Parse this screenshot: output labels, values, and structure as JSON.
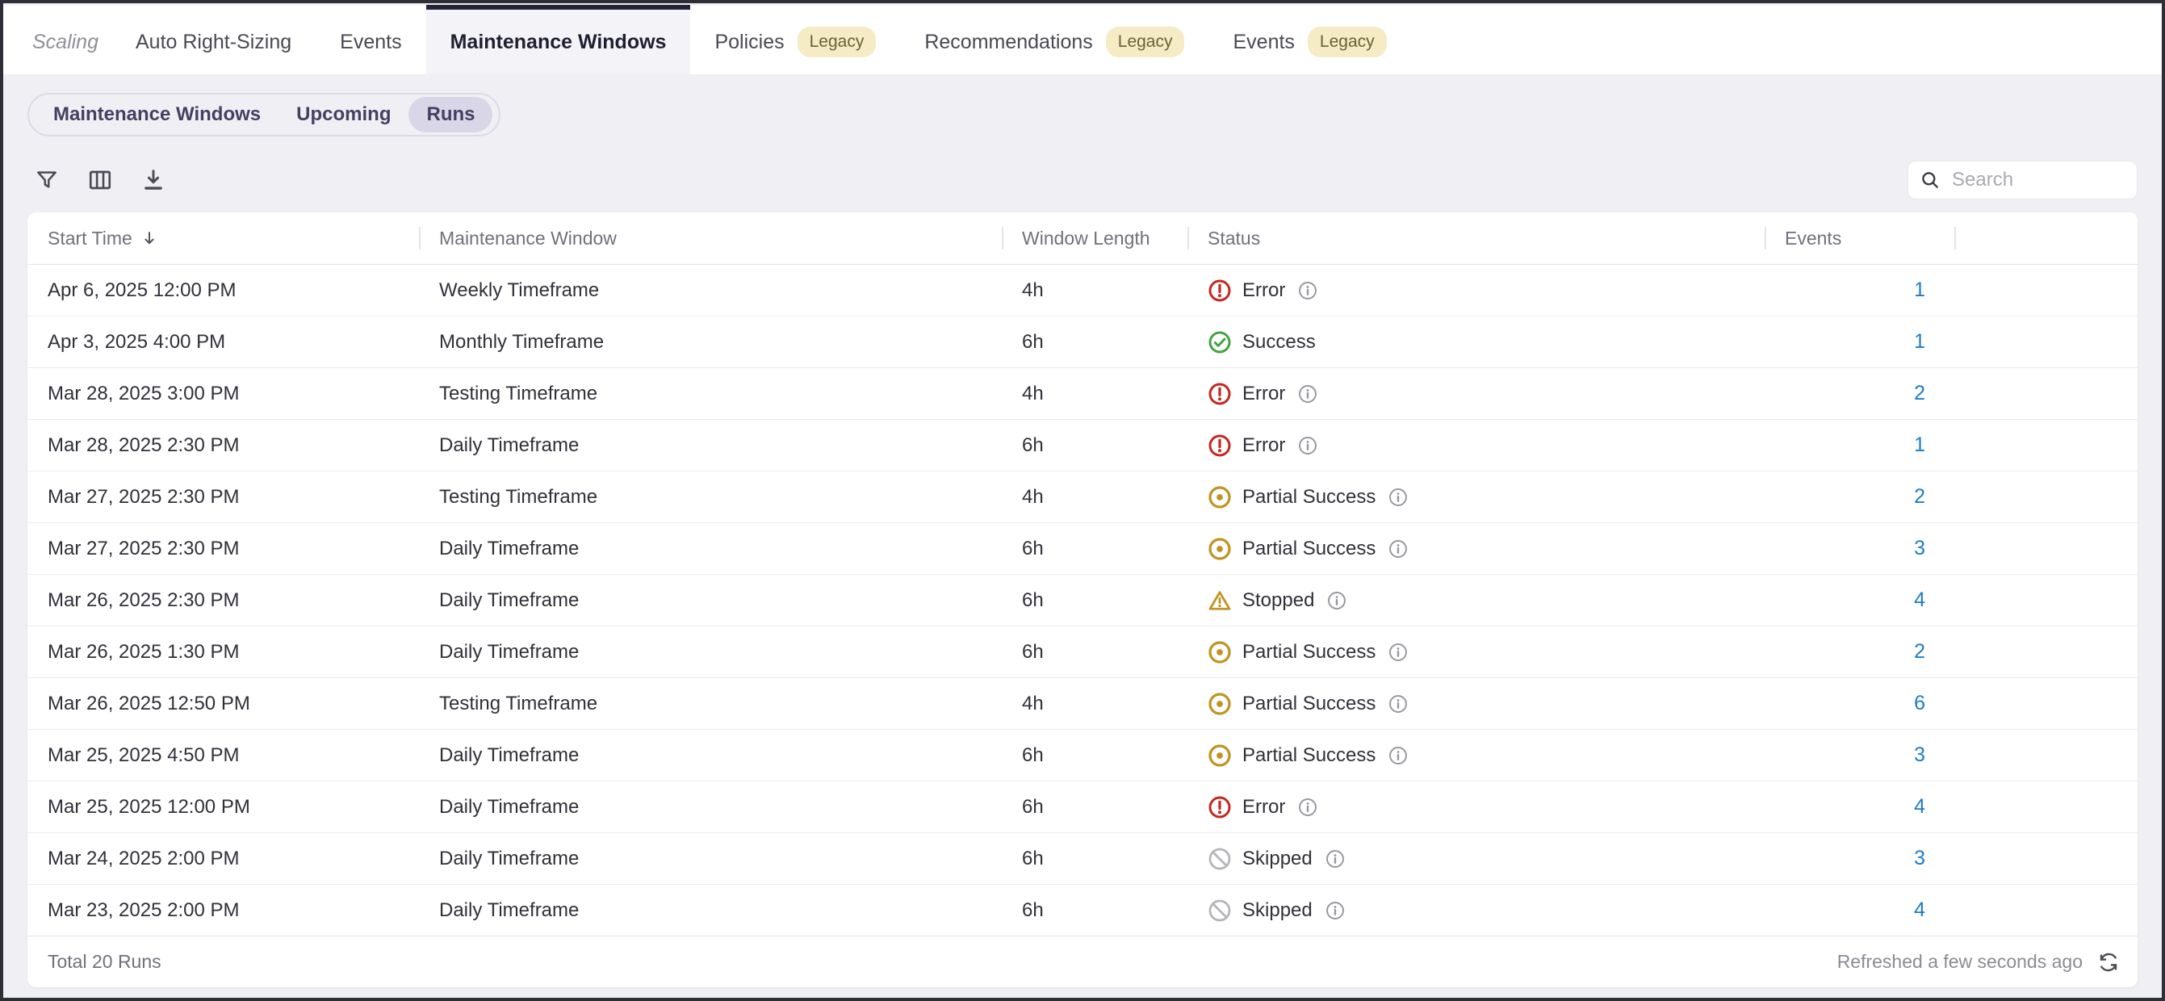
{
  "tabs": {
    "items": [
      {
        "label": "Scaling",
        "state": "disabled"
      },
      {
        "label": "Auto Right-Sizing"
      },
      {
        "label": "Events"
      },
      {
        "label": "Maintenance Windows",
        "state": "active"
      },
      {
        "label": "Policies",
        "badge": "Legacy"
      },
      {
        "label": "Recommendations",
        "badge": "Legacy"
      },
      {
        "label": "Events",
        "badge": "Legacy"
      }
    ]
  },
  "subnav": {
    "items": [
      {
        "label": "Maintenance Windows"
      },
      {
        "label": "Upcoming"
      },
      {
        "label": "Runs",
        "selected": true
      }
    ]
  },
  "toolbar": {
    "icons": [
      "filter-icon",
      "columns-icon",
      "download-icon"
    ],
    "search_placeholder": "Search"
  },
  "table": {
    "columns": [
      "Start Time",
      "Maintenance Window",
      "Window Length",
      "Status",
      "Events"
    ],
    "sort": {
      "column": "Start Time",
      "direction": "desc"
    },
    "rows": [
      {
        "start_time": "Apr 6, 2025 12:00 PM",
        "window": "Weekly Timeframe",
        "length": "4h",
        "status": "Error",
        "status_type": "error",
        "has_info": true,
        "events": "1"
      },
      {
        "start_time": "Apr 3, 2025 4:00 PM",
        "window": "Monthly Timeframe",
        "length": "6h",
        "status": "Success",
        "status_type": "success",
        "has_info": false,
        "events": "1"
      },
      {
        "start_time": "Mar 28, 2025 3:00 PM",
        "window": "Testing Timeframe",
        "length": "4h",
        "status": "Error",
        "status_type": "error",
        "has_info": true,
        "events": "2"
      },
      {
        "start_time": "Mar 28, 2025 2:30 PM",
        "window": "Daily Timeframe",
        "length": "6h",
        "status": "Error",
        "status_type": "error",
        "has_info": true,
        "events": "1"
      },
      {
        "start_time": "Mar 27, 2025 2:30 PM",
        "window": "Testing Timeframe",
        "length": "4h",
        "status": "Partial Success",
        "status_type": "partial",
        "has_info": true,
        "events": "2"
      },
      {
        "start_time": "Mar 27, 2025 2:30 PM",
        "window": "Daily Timeframe",
        "length": "6h",
        "status": "Partial Success",
        "status_type": "partial",
        "has_info": true,
        "events": "3"
      },
      {
        "start_time": "Mar 26, 2025 2:30 PM",
        "window": "Daily Timeframe",
        "length": "6h",
        "status": "Stopped",
        "status_type": "stopped",
        "has_info": true,
        "events": "4"
      },
      {
        "start_time": "Mar 26, 2025 1:30 PM",
        "window": "Daily Timeframe",
        "length": "6h",
        "status": "Partial Success",
        "status_type": "partial",
        "has_info": true,
        "events": "2"
      },
      {
        "start_time": "Mar 26, 2025 12:50 PM",
        "window": "Testing Timeframe",
        "length": "4h",
        "status": "Partial Success",
        "status_type": "partial",
        "has_info": true,
        "events": "6"
      },
      {
        "start_time": "Mar 25, 2025 4:50 PM",
        "window": "Daily Timeframe",
        "length": "6h",
        "status": "Partial Success",
        "status_type": "partial",
        "has_info": true,
        "events": "3"
      },
      {
        "start_time": "Mar 25, 2025 12:00 PM",
        "window": "Daily Timeframe",
        "length": "6h",
        "status": "Error",
        "status_type": "error",
        "has_info": true,
        "events": "4"
      },
      {
        "start_time": "Mar 24, 2025 2:00 PM",
        "window": "Daily Timeframe",
        "length": "6h",
        "status": "Skipped",
        "status_type": "skipped",
        "has_info": true,
        "events": "3"
      },
      {
        "start_time": "Mar 23, 2025 2:00 PM",
        "window": "Daily Timeframe",
        "length": "6h",
        "status": "Skipped",
        "status_type": "skipped",
        "has_info": true,
        "events": "4"
      }
    ],
    "footer": {
      "total": "Total 20 Runs",
      "refreshed": "Refreshed a few seconds ago"
    }
  },
  "colors": {
    "accent_dark": "#23223a",
    "page_bg": "#f0f0f4",
    "error": "#c5281e",
    "success": "#44a340",
    "warning": "#bf9422",
    "skipped": "#b4b4ba",
    "info": "#97979f",
    "link": "#1b7cc9",
    "badge_bg": "#f5ebc4",
    "badge_text": "#6b6233",
    "segment_selected_bg": "#d9d6e8"
  }
}
